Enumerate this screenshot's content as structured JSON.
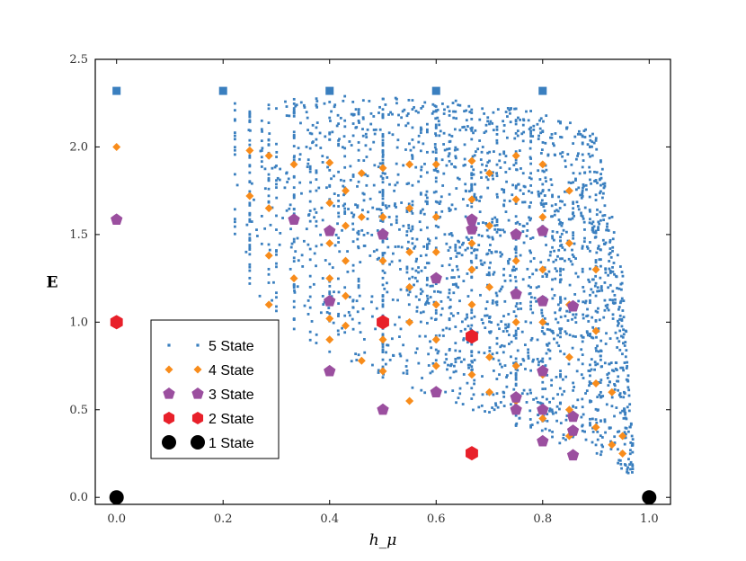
{
  "chart_data": {
    "type": "scatter",
    "title": "",
    "xlabel": "h_μ",
    "ylabel": "E",
    "xlim": [
      -0.04,
      1.04
    ],
    "ylim": [
      -0.04,
      2.5
    ],
    "xticks": [
      0.0,
      0.2,
      0.4,
      0.6,
      0.8,
      1.0
    ],
    "xtick_labels": [
      "0.0",
      "0.2",
      "0.4",
      "0.6",
      "0.8",
      "1.0"
    ],
    "yticks": [
      0.0,
      0.5,
      1.0,
      1.5,
      2.0,
      2.5
    ],
    "ytick_labels": [
      "0.0",
      "0.5",
      "1.0",
      "1.5",
      "2.0",
      "2.5"
    ],
    "grid": false,
    "legend_position": "lower-left",
    "legend_order": [
      "5 State",
      "4 State",
      "3 State",
      "2 State",
      "1 State"
    ],
    "series": [
      {
        "name": "1 State",
        "marker": "circle",
        "color": "#000000",
        "points": [
          [
            0.0,
            0.0
          ],
          [
            1.0,
            0.0
          ]
        ]
      },
      {
        "name": "2 State",
        "marker": "hexagon",
        "color": "#e8202a",
        "points": [
          [
            0.0,
            1.0
          ],
          [
            0.5,
            1.0
          ],
          [
            0.667,
            0.918
          ],
          [
            0.667,
            0.252
          ]
        ]
      },
      {
        "name": "3 State",
        "marker": "pentagon",
        "color": "#9b4f9f",
        "points": [
          [
            0.0,
            1.585
          ],
          [
            0.333,
            1.585
          ],
          [
            0.4,
            1.52
          ],
          [
            0.4,
            1.12
          ],
          [
            0.4,
            0.72
          ],
          [
            0.5,
            1.5
          ],
          [
            0.5,
            0.5
          ],
          [
            0.6,
            1.25
          ],
          [
            0.6,
            0.6
          ],
          [
            0.667,
            1.585
          ],
          [
            0.667,
            1.53
          ],
          [
            0.75,
            1.5
          ],
          [
            0.75,
            1.16
          ],
          [
            0.75,
            0.57
          ],
          [
            0.75,
            0.5
          ],
          [
            0.8,
            1.52
          ],
          [
            0.8,
            1.12
          ],
          [
            0.8,
            0.72
          ],
          [
            0.8,
            0.5
          ],
          [
            0.8,
            0.32
          ],
          [
            0.857,
            1.09
          ],
          [
            0.857,
            0.46
          ],
          [
            0.857,
            0.38
          ],
          [
            0.857,
            0.24
          ]
        ]
      },
      {
        "name": "4 State",
        "marker": "diamond",
        "color": "#f88c1b",
        "points": [
          [
            0.0,
            2.0
          ],
          [
            0.25,
            1.98
          ],
          [
            0.25,
            1.72
          ],
          [
            0.286,
            1.95
          ],
          [
            0.286,
            1.65
          ],
          [
            0.286,
            1.38
          ],
          [
            0.286,
            1.1
          ],
          [
            0.333,
            1.9
          ],
          [
            0.333,
            1.25
          ],
          [
            0.4,
            1.91
          ],
          [
            0.4,
            1.68
          ],
          [
            0.4,
            1.45
          ],
          [
            0.4,
            1.25
          ],
          [
            0.4,
            1.02
          ],
          [
            0.4,
            0.9
          ],
          [
            0.43,
            1.75
          ],
          [
            0.43,
            1.55
          ],
          [
            0.43,
            1.35
          ],
          [
            0.43,
            1.15
          ],
          [
            0.43,
            0.98
          ],
          [
            0.46,
            1.85
          ],
          [
            0.46,
            1.6
          ],
          [
            0.46,
            0.78
          ],
          [
            0.5,
            1.88
          ],
          [
            0.5,
            1.6
          ],
          [
            0.5,
            1.35
          ],
          [
            0.5,
            0.9
          ],
          [
            0.5,
            0.72
          ],
          [
            0.55,
            1.9
          ],
          [
            0.55,
            1.65
          ],
          [
            0.55,
            1.4
          ],
          [
            0.55,
            1.2
          ],
          [
            0.55,
            1.0
          ],
          [
            0.55,
            0.55
          ],
          [
            0.6,
            1.9
          ],
          [
            0.6,
            1.6
          ],
          [
            0.6,
            1.4
          ],
          [
            0.6,
            1.1
          ],
          [
            0.6,
            0.9
          ],
          [
            0.6,
            0.75
          ],
          [
            0.667,
            1.92
          ],
          [
            0.667,
            1.7
          ],
          [
            0.667,
            1.45
          ],
          [
            0.667,
            1.3
          ],
          [
            0.667,
            1.1
          ],
          [
            0.667,
            0.9
          ],
          [
            0.667,
            0.7
          ],
          [
            0.7,
            1.85
          ],
          [
            0.7,
            1.55
          ],
          [
            0.7,
            1.2
          ],
          [
            0.7,
            0.8
          ],
          [
            0.7,
            0.6
          ],
          [
            0.75,
            1.95
          ],
          [
            0.75,
            1.7
          ],
          [
            0.75,
            1.35
          ],
          [
            0.75,
            1.0
          ],
          [
            0.75,
            0.75
          ],
          [
            0.75,
            0.55
          ],
          [
            0.8,
            1.9
          ],
          [
            0.8,
            1.6
          ],
          [
            0.8,
            1.3
          ],
          [
            0.8,
            1.0
          ],
          [
            0.8,
            0.7
          ],
          [
            0.8,
            0.45
          ],
          [
            0.85,
            1.75
          ],
          [
            0.85,
            1.45
          ],
          [
            0.85,
            1.1
          ],
          [
            0.85,
            0.8
          ],
          [
            0.85,
            0.5
          ],
          [
            0.85,
            0.35
          ],
          [
            0.9,
            1.3
          ],
          [
            0.9,
            0.95
          ],
          [
            0.9,
            0.65
          ],
          [
            0.9,
            0.4
          ],
          [
            0.93,
            0.6
          ],
          [
            0.93,
            0.3
          ],
          [
            0.95,
            0.35
          ],
          [
            0.95,
            0.25
          ]
        ]
      },
      {
        "name": "5 State",
        "marker": "square",
        "color": "#3a7fbf",
        "points": [
          [
            0.0,
            2.32
          ],
          [
            0.2,
            2.32
          ],
          [
            0.4,
            2.32
          ],
          [
            0.6,
            2.32
          ],
          [
            0.8,
            2.32
          ]
        ],
        "cloud_envelope": {
          "x_start": 0.22,
          "x_end": 0.97,
          "upper": [
            [
              0.22,
              2.25
            ],
            [
              0.4,
              2.3
            ],
            [
              0.5,
              2.28
            ],
            [
              0.6,
              2.28
            ],
            [
              0.7,
              2.24
            ],
            [
              0.8,
              2.2
            ],
            [
              0.9,
              2.08
            ],
            [
              0.95,
              1.3
            ],
            [
              0.97,
              0.3
            ]
          ],
          "lower": [
            [
              0.22,
              1.3
            ],
            [
              0.3,
              1.0
            ],
            [
              0.4,
              0.82
            ],
            [
              0.5,
              0.68
            ],
            [
              0.6,
              0.55
            ],
            [
              0.7,
              0.45
            ],
            [
              0.8,
              0.35
            ],
            [
              0.9,
              0.22
            ],
            [
              0.97,
              0.12
            ]
          ]
        }
      }
    ]
  }
}
